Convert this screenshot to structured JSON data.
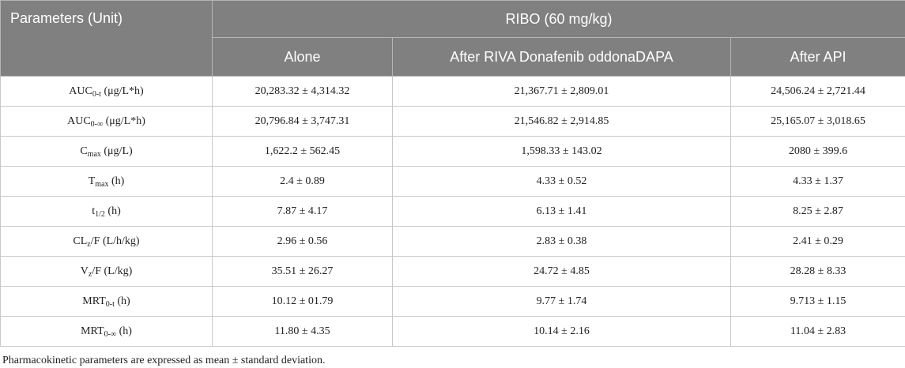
{
  "header": {
    "param_col": "Parameters (Unit)",
    "group_title": "RIBO (60 mg/kg)",
    "columns": [
      "Alone",
      "After RIVA Donafenib oddonaDAPA",
      "After API"
    ]
  },
  "rows": [
    {
      "name": "AUC",
      "sub": "0-t",
      "unit": "(μg/L*h)",
      "values": [
        "20,283.32 ± 4,314.32",
        "21,367.71 ± 2,809.01",
        "24,506.24 ± 2,721.44"
      ]
    },
    {
      "name": "AUC",
      "sub": "0-∞",
      "unit": "(μg/L*h)",
      "values": [
        "20,796.84 ± 3,747.31",
        "21,546.82 ± 2,914.85",
        "25,165.07 ± 3,018.65"
      ]
    },
    {
      "name": "C",
      "sub": "max",
      "unit": "(μg/L)",
      "values": [
        "1,622.2 ± 562.45",
        "1,598.33 ± 143.02",
        "2080 ± 399.6"
      ]
    },
    {
      "name": "T",
      "sub": "max",
      "unit": "(h)",
      "values": [
        "2.4 ± 0.89",
        "4.33 ± 0.52",
        "4.33 ± 1.37"
      ]
    },
    {
      "name": "t",
      "sub": "1/2",
      "unit": "(h)",
      "values": [
        "7.87 ± 4.17",
        "6.13 ± 1.41",
        "8.25 ± 2.87"
      ]
    },
    {
      "name": "CL",
      "sub": "z",
      "suffix": "/F",
      "unit": "(L/h/kg)",
      "values": [
        "2.96 ± 0.56",
        "2.83 ± 0.38",
        "2.41 ± 0.29"
      ]
    },
    {
      "name": "V",
      "sub": "z",
      "suffix": "/F",
      "unit": "(L/kg)",
      "values": [
        "35.51 ± 26.27",
        "24.72 ± 4.85",
        "28.28 ± 8.33"
      ]
    },
    {
      "name": "MRT",
      "sub": "0-t",
      "unit": "(h)",
      "values": [
        "10.12 ± 01.79",
        "9.77 ± 1.74",
        "9.713 ± 1.15"
      ]
    },
    {
      "name": "MRT",
      "sub": "0-∞",
      "unit": "(h)",
      "values": [
        "11.80 ± 4.35",
        "10.14 ± 2.16",
        "11.04 ± 2.83"
      ]
    }
  ],
  "footnote": "Pharmacokinetic parameters are expressed as mean ± standard deviation."
}
